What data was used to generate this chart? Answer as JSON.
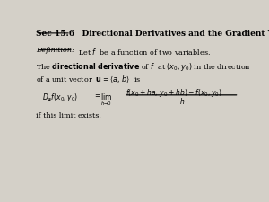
{
  "background_color": "#d4d0c8",
  "text_color": "#000000",
  "fig_width": 3.0,
  "fig_height": 2.25,
  "dpi": 100,
  "title_sec": "Sec 15.6",
  "title_rest": "    Directional Derivatives and the Gradient Vector",
  "def_label": "Definition:",
  "def_text": "  Let ",
  "def_text2": " be a function of two variables.",
  "line2": "The ",
  "line2_bold": "directional derivative",
  "line2_rest": " of ",
  "line3": "of a unit vector  ",
  "line3_end": "  is",
  "limit_text": "if this limit exists."
}
